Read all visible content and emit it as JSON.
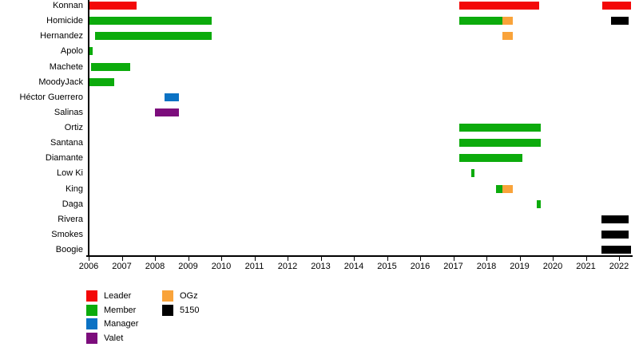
{
  "chart_data": {
    "type": "timeline",
    "title": "",
    "x_axis": {
      "min": 2006,
      "max": 2022.35,
      "ticks": [
        2006,
        2007,
        2008,
        2009,
        2010,
        2011,
        2012,
        2013,
        2014,
        2015,
        2016,
        2017,
        2018,
        2019,
        2020,
        2021,
        2022
      ]
    },
    "legend": [
      {
        "label": "Leader",
        "color": "#f30808",
        "col": 0,
        "row": 0
      },
      {
        "label": "Member",
        "color": "#0cab0c",
        "col": 0,
        "row": 1
      },
      {
        "label": "Manager",
        "color": "#0b72c4",
        "col": 0,
        "row": 2
      },
      {
        "label": "Valet",
        "color": "#7c0d7c",
        "col": 0,
        "row": 3
      },
      {
        "label": "OGz",
        "color": "#f9a33a",
        "col": 1,
        "row": 0
      },
      {
        "label": "5150",
        "color": "#000000",
        "col": 1,
        "row": 1
      }
    ],
    "rows": [
      {
        "name": "Konnan",
        "segments": [
          {
            "from": 2006.0,
            "to": 2007.45,
            "role": "Leader"
          },
          {
            "from": 2017.18,
            "to": 2019.6,
            "role": "Leader"
          },
          {
            "from": 2021.5,
            "to": 2022.35,
            "role": "Leader"
          }
        ]
      },
      {
        "name": "Homicide",
        "segments": [
          {
            "from": 2006.0,
            "to": 2009.7,
            "role": "Member"
          },
          {
            "from": 2017.18,
            "to": 2018.48,
            "role": "Member"
          },
          {
            "from": 2018.48,
            "to": 2018.8,
            "role": "OGz"
          },
          {
            "from": 2021.76,
            "to": 2022.3,
            "role": "5150"
          }
        ]
      },
      {
        "name": "Hernandez",
        "segments": [
          {
            "from": 2006.2,
            "to": 2009.7,
            "role": "Member"
          },
          {
            "from": 2018.48,
            "to": 2018.8,
            "role": "OGz"
          }
        ]
      },
      {
        "name": "Apolo",
        "segments": [
          {
            "from": 2006.0,
            "to": 2006.12,
            "role": "Member"
          }
        ]
      },
      {
        "name": "Machete",
        "segments": [
          {
            "from": 2006.08,
            "to": 2007.25,
            "role": "Member"
          }
        ]
      },
      {
        "name": "MoodyJack",
        "segments": [
          {
            "from": 2006.0,
            "to": 2006.77,
            "role": "Member"
          }
        ]
      },
      {
        "name": "Héctor Guerrero",
        "segments": [
          {
            "from": 2008.3,
            "to": 2008.72,
            "role": "Manager"
          }
        ]
      },
      {
        "name": "Salinas",
        "segments": [
          {
            "from": 2008.0,
            "to": 2008.72,
            "role": "Valet"
          }
        ]
      },
      {
        "name": "Ortiz",
        "segments": [
          {
            "from": 2017.18,
            "to": 2019.64,
            "role": "Member"
          }
        ]
      },
      {
        "name": "Santana",
        "segments": [
          {
            "from": 2017.18,
            "to": 2019.64,
            "role": "Member"
          }
        ]
      },
      {
        "name": "Diamante",
        "segments": [
          {
            "from": 2017.18,
            "to": 2019.08,
            "role": "Member"
          }
        ]
      },
      {
        "name": "Low Ki",
        "segments": [
          {
            "from": 2017.54,
            "to": 2017.64,
            "role": "Member"
          }
        ]
      },
      {
        "name": "King",
        "segments": [
          {
            "from": 2018.29,
            "to": 2018.48,
            "role": "Member"
          },
          {
            "from": 2018.48,
            "to": 2018.8,
            "role": "OGz"
          }
        ]
      },
      {
        "name": "Daga",
        "segments": [
          {
            "from": 2019.52,
            "to": 2019.64,
            "role": "Member"
          }
        ]
      },
      {
        "name": "Rivera",
        "segments": [
          {
            "from": 2021.47,
            "to": 2022.3,
            "role": "5150"
          }
        ]
      },
      {
        "name": "Smokes",
        "segments": [
          {
            "from": 2021.47,
            "to": 2022.3,
            "role": "5150"
          }
        ]
      },
      {
        "name": "Boogie",
        "segments": [
          {
            "from": 2021.47,
            "to": 2022.35,
            "role": "5150"
          }
        ]
      }
    ]
  }
}
